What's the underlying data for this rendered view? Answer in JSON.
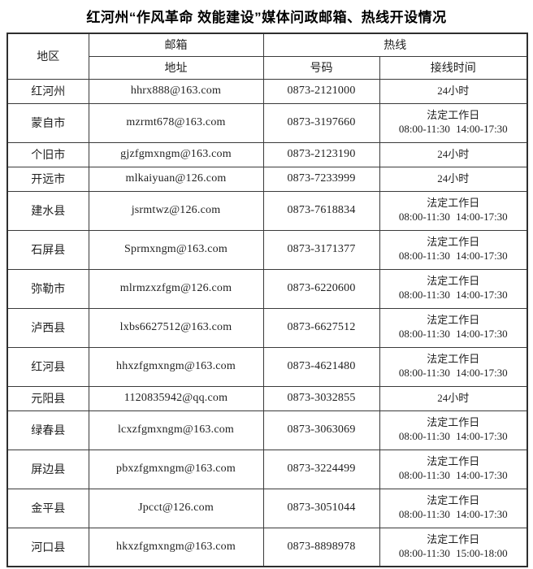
{
  "title": "红河州“作风革命 效能建设”媒体问政邮箱、热线开设情况",
  "table": {
    "headers": {
      "region": "地区",
      "mailbox_group": "邮箱",
      "hotline_group": "热线",
      "address": "地址",
      "number": "号码",
      "hours": "接线时间"
    },
    "rows": [
      {
        "region": "红河州",
        "email": "hhrx888@163.com",
        "phone": "0873-2121000",
        "hours": [
          "24小时"
        ]
      },
      {
        "region": "蒙自市",
        "email": "mzrmt678@163.com",
        "phone": "0873-3197660",
        "hours": [
          "法定工作日",
          "08:00-11:30 14:00-17:30"
        ]
      },
      {
        "region": "个旧市",
        "email": "gjzfgmxngm@163.com",
        "phone": "0873-2123190",
        "hours": [
          "24小时"
        ]
      },
      {
        "region": "开远市",
        "email": "mlkaiyuan@126.com",
        "phone": "0873-7233999",
        "hours": [
          "24小时"
        ]
      },
      {
        "region": "建水县",
        "email": "jsrmtwz@126.com",
        "phone": "0873-7618834",
        "hours": [
          "法定工作日",
          "08:00-11:30 14:00-17:30"
        ]
      },
      {
        "region": "石屏县",
        "email": "Sprmxngm@163.com",
        "phone": "0873-3171377",
        "hours": [
          "法定工作日",
          "08:00-11:30 14:00-17:30"
        ]
      },
      {
        "region": "弥勒市",
        "email": "mlrmzxzfgm@126.com",
        "phone": "0873-6220600",
        "hours": [
          "法定工作日",
          "08:00-11:30 14:00-17:30"
        ]
      },
      {
        "region": "泸西县",
        "email": "lxbs6627512@163.com",
        "phone": "0873-6627512",
        "hours": [
          "法定工作日",
          "08:00-11:30 14:00-17:30"
        ]
      },
      {
        "region": "红河县",
        "email": "hhxzfgmxngm@163.com",
        "phone": "0873-4621480",
        "hours": [
          "法定工作日",
          "08:00-11:30 14:00-17:30"
        ]
      },
      {
        "region": "元阳县",
        "email": "1120835942@qq.com",
        "phone": "0873-3032855",
        "hours": [
          "24小时"
        ]
      },
      {
        "region": "绿春县",
        "email": "lcxzfgmxngm@163.com",
        "phone": "0873-3063069",
        "hours": [
          "法定工作日",
          "08:00-11:30 14:00-17:30"
        ]
      },
      {
        "region": "屏边县",
        "email": "pbxzfgmxngm@163.com",
        "phone": "0873-3224499",
        "hours": [
          "法定工作日",
          "08:00-11:30 14:00-17:30"
        ]
      },
      {
        "region": "金平县",
        "email": "Jpcct@126.com",
        "phone": "0873-3051044",
        "hours": [
          "法定工作日",
          "08:00-11:30 14:00-17:30"
        ]
      },
      {
        "region": "河口县",
        "email": "hkxzfgmxngm@163.com",
        "phone": "0873-8898978",
        "hours": [
          "法定工作日",
          "08:00-11:30 15:00-18:00"
        ]
      }
    ]
  },
  "colors": {
    "border": "#3a3a3a",
    "outer_border": "#2e2e2e",
    "text": "#1f1f1f",
    "background": "#ffffff"
  }
}
